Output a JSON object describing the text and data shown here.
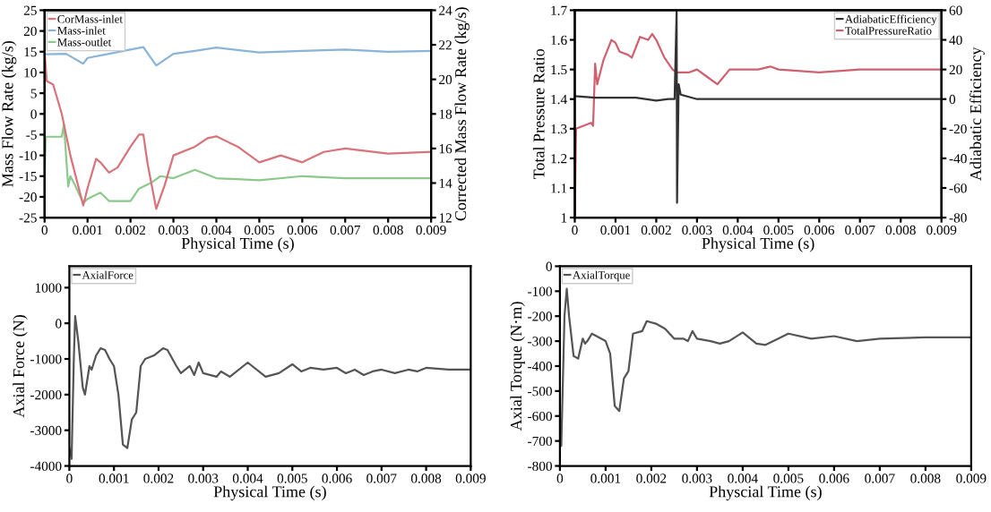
{
  "chart_data": [
    {
      "type": "line",
      "xlabel": "Physical Time (s)",
      "ylabel": "Mass Flow Rate (kg/s)",
      "y2label": "Corrected Mass Flow Rate (kg/s)",
      "xlim": [
        0,
        0.009
      ],
      "xticks": [
        0,
        0.001,
        0.002,
        0.003,
        0.004,
        0.005,
        0.006,
        0.007,
        0.008,
        0.009
      ],
      "ylim": [
        -25,
        25
      ],
      "yticks": [
        -25,
        -20,
        -15,
        -10,
        -5,
        0,
        5,
        10,
        15,
        20,
        25
      ],
      "y2lim": [
        12,
        24
      ],
      "y2ticks": [
        12,
        14,
        16,
        18,
        20,
        22,
        24
      ],
      "legend": "top left",
      "grid": false,
      "series": [
        {
          "name": "CorMass-inlet",
          "color": "#d9737a",
          "axis": "y2",
          "x": [
            0,
            5e-05,
            0.0002,
            0.0004,
            0.0006,
            0.0009,
            0.001,
            0.0012,
            0.0013,
            0.0015,
            0.0017,
            0.002,
            0.0022,
            0.0023,
            0.0024,
            0.0026,
            0.0028,
            0.003,
            0.0035,
            0.0038,
            0.004,
            0.0045,
            0.005,
            0.0055,
            0.006,
            0.0065,
            0.007,
            0.008,
            0.009
          ],
          "values": [
            21.6,
            19.9,
            19.7,
            18,
            15.6,
            12.7,
            13.7,
            15.4,
            15.2,
            14.6,
            14.9,
            16.1,
            16.8,
            16.8,
            15.1,
            12.5,
            13.9,
            15.6,
            16.1,
            16.6,
            16.7,
            16.1,
            15.2,
            15.6,
            15.2,
            15.8,
            16,
            15.7,
            15.8
          ]
        },
        {
          "name": "Mass-inlet",
          "color": "#8ab4d8",
          "x": [
            0,
            0.0005,
            0.0009,
            0.001,
            0.0015,
            0.002,
            0.0023,
            0.0026,
            0.003,
            0.0035,
            0.004,
            0.005,
            0.006,
            0.007,
            0.008,
            0.009
          ],
          "values": [
            14.4,
            14.5,
            12.1,
            13.5,
            14.5,
            15.5,
            16.1,
            11.7,
            14.5,
            15.2,
            16,
            14.8,
            15.2,
            15.5,
            15,
            15.2
          ]
        },
        {
          "name": "Mass-outlet",
          "color": "#8cc98c",
          "x": [
            0,
            3e-05,
            0.0004,
            0.00045,
            0.0005,
            0.00055,
            0.0006,
            0.0007,
            0.0009,
            0.001,
            0.0012,
            0.0013,
            0.0015,
            0.0018,
            0.002,
            0.0022,
            0.0025,
            0.0027,
            0.003,
            0.0035,
            0.004,
            0.005,
            0.006,
            0.007,
            0.009
          ],
          "values": [
            -15,
            -5.5,
            -5.5,
            -2.5,
            -10,
            -17.5,
            -15,
            -17,
            -21.5,
            -20.5,
            -19.5,
            -19,
            -21,
            -21,
            -21,
            -18,
            -16.5,
            -15,
            -15.5,
            -13.5,
            -15.5,
            -16,
            -15,
            -15.5,
            -15.5
          ]
        }
      ]
    },
    {
      "type": "line",
      "xlabel": "Physical Time (s)",
      "ylabel": "Total Pressure Ratio",
      "y2label": "Adiabatic Efficiency",
      "xlim": [
        0,
        0.009
      ],
      "xticks": [
        0,
        0.001,
        0.002,
        0.003,
        0.004,
        0.005,
        0.006,
        0.007,
        0.008,
        0.009
      ],
      "ylim": [
        1,
        1.7
      ],
      "yticks": [
        1,
        1.1,
        1.2,
        1.3,
        1.4,
        1.5,
        1.6,
        1.7
      ],
      "y2lim": [
        -80,
        60
      ],
      "y2ticks": [
        -80,
        -60,
        -40,
        -20,
        0,
        20,
        40,
        60
      ],
      "legend": "top right",
      "grid": false,
      "series": [
        {
          "name": "AdiabaticEfficiency",
          "color": "#333333",
          "axis": "y2",
          "x": [
            0,
            0.0005,
            0.001,
            0.0015,
            0.002,
            0.0023,
            0.00245,
            0.0025,
            0.00251,
            0.00255,
            0.0026,
            0.003,
            0.009
          ],
          "values": [
            2,
            1,
            1,
            1,
            -1,
            0,
            0,
            60,
            -70,
            10,
            3,
            0,
            0
          ]
        },
        {
          "name": "TotalPressureRatio",
          "color": "#d06070",
          "x": [
            0,
            3e-05,
            0.0004,
            0.00045,
            0.0005,
            0.00055,
            0.0007,
            0.0009,
            0.001,
            0.0011,
            0.0013,
            0.0014,
            0.0016,
            0.0018,
            0.0019,
            0.002,
            0.0022,
            0.0024,
            0.0025,
            0.0028,
            0.003,
            0.0032,
            0.0035,
            0.0038,
            0.004,
            0.0045,
            0.0048,
            0.005,
            0.006,
            0.007,
            0.008,
            0.009
          ],
          "values": [
            1.0,
            1.3,
            1.32,
            1.31,
            1.52,
            1.45,
            1.53,
            1.6,
            1.59,
            1.56,
            1.55,
            1.54,
            1.61,
            1.6,
            1.62,
            1.6,
            1.54,
            1.5,
            1.49,
            1.49,
            1.5,
            1.48,
            1.45,
            1.5,
            1.5,
            1.5,
            1.51,
            1.5,
            1.49,
            1.5,
            1.5,
            1.5
          ]
        }
      ]
    },
    {
      "type": "line",
      "xlabel": "Physical Time (s)",
      "ylabel": "Axial Force (N)",
      "xlim": [
        0,
        0.009
      ],
      "xticks": [
        0,
        0.001,
        0.002,
        0.003,
        0.004,
        0.005,
        0.006,
        0.007,
        0.008,
        0.009
      ],
      "ylim": [
        -4000,
        1600
      ],
      "yticks": [
        -4000,
        -3000,
        -2000,
        -1000,
        0,
        1000
      ],
      "legend": "top left",
      "grid": false,
      "series": [
        {
          "name": "AxialForce",
          "color": "#555555",
          "x": [
            0,
            5e-05,
            0.0001,
            0.00013,
            0.0002,
            0.0003,
            0.00035,
            0.00045,
            0.0005,
            0.0006,
            0.0007,
            0.0008,
            0.0009,
            0.001,
            0.0011,
            0.0012,
            0.0013,
            0.0014,
            0.0015,
            0.0016,
            0.0017,
            0.0019,
            0.0021,
            0.0022,
            0.0024,
            0.0025,
            0.0027,
            0.0028,
            0.0029,
            0.003,
            0.0033,
            0.0034,
            0.0036,
            0.004,
            0.0044,
            0.0047,
            0.005,
            0.0052,
            0.0054,
            0.0057,
            0.006,
            0.0062,
            0.0064,
            0.0066,
            0.0068,
            0.007,
            0.0073,
            0.0076,
            0.0078,
            0.008,
            0.0085,
            0.009
          ],
          "values": [
            -3500,
            -3800,
            -1000,
            200,
            -500,
            -1800,
            -2000,
            -1200,
            -1300,
            -900,
            -700,
            -750,
            -1000,
            -1200,
            -2000,
            -3400,
            -3500,
            -2700,
            -2500,
            -1200,
            -1000,
            -900,
            -700,
            -750,
            -1200,
            -1400,
            -1200,
            -1450,
            -1100,
            -1400,
            -1500,
            -1350,
            -1500,
            -1100,
            -1500,
            -1400,
            -1150,
            -1350,
            -1250,
            -1300,
            -1250,
            -1400,
            -1300,
            -1450,
            -1350,
            -1300,
            -1400,
            -1300,
            -1350,
            -1250,
            -1300,
            -1300
          ]
        }
      ]
    },
    {
      "type": "line",
      "xlabel": "Physcial Time (s)",
      "ylabel": "Axial Torque (N·m)",
      "xlim": [
        0,
        0.009
      ],
      "xticks": [
        0,
        0.001,
        0.002,
        0.003,
        0.004,
        0.005,
        0.006,
        0.007,
        0.008,
        0.009
      ],
      "ylim": [
        -800,
        0
      ],
      "yticks": [
        -800,
        -700,
        -600,
        -500,
        -400,
        -300,
        -200,
        -100,
        0
      ],
      "legend": "top left",
      "grid": false,
      "series": [
        {
          "name": "AxialTorque",
          "color": "#555555",
          "x": [
            0,
            3e-05,
            0.0001,
            0.00015,
            0.0002,
            0.0003,
            0.0004,
            0.0005,
            0.00055,
            0.0006,
            0.0007,
            0.0009,
            0.001,
            0.0011,
            0.0012,
            0.0013,
            0.0014,
            0.0015,
            0.0016,
            0.0018,
            0.0019,
            0.0021,
            0.0023,
            0.0025,
            0.0027,
            0.0028,
            0.0029,
            0.003,
            0.0033,
            0.0035,
            0.0037,
            0.004,
            0.0043,
            0.0045,
            0.005,
            0.0055,
            0.006,
            0.0065,
            0.007,
            0.008,
            0.009
          ],
          "values": [
            -700,
            -720,
            -200,
            -90,
            -200,
            -360,
            -370,
            -290,
            -310,
            -300,
            -270,
            -290,
            -300,
            -350,
            -560,
            -580,
            -450,
            -420,
            -270,
            -260,
            -220,
            -230,
            -250,
            -290,
            -290,
            -300,
            -260,
            -290,
            -300,
            -310,
            -300,
            -265,
            -310,
            -315,
            -270,
            -290,
            -280,
            -300,
            -290,
            -285,
            -285
          ]
        }
      ]
    }
  ]
}
